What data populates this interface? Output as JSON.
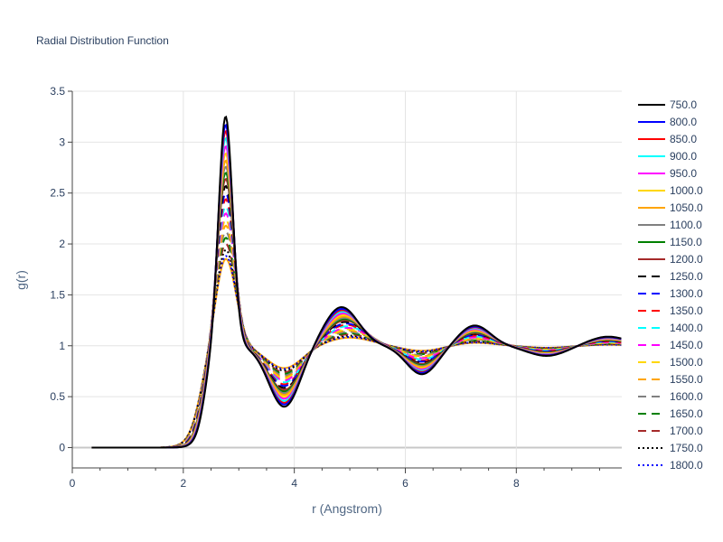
{
  "chart_data": {
    "type": "line",
    "title": "Radial Distribution Function",
    "xlabel": "r (Angstrom)",
    "ylabel": "g(r)",
    "xlim": [
      0,
      9.9
    ],
    "ylim": [
      -0.2,
      3.5
    ],
    "xticks": [
      0,
      2,
      4,
      6,
      8
    ],
    "xtick_labels": [
      "0",
      "2",
      "4",
      "6",
      "8"
    ],
    "yticks": [
      0,
      0.5,
      1,
      1.5,
      2,
      2.5,
      3,
      3.5
    ],
    "ytick_labels": [
      "0",
      "0.5",
      "1",
      "1.5",
      "2",
      "2.5",
      "3",
      "3.5"
    ],
    "grid": true,
    "legend_position": "right",
    "series": [
      {
        "name": "750.0",
        "color": "#000000",
        "dash": "solid",
        "peak1_height": 3.33
      },
      {
        "name": "800.0",
        "color": "#0000ff",
        "dash": "solid",
        "peak1_height": 3.25
      },
      {
        "name": "850.0",
        "color": "#ff0000",
        "dash": "solid",
        "peak1_height": 3.19
      },
      {
        "name": "900.0",
        "color": "#00ffff",
        "dash": "solid",
        "peak1_height": 3.12
      },
      {
        "name": "950.0",
        "color": "#ff00ff",
        "dash": "solid",
        "peak1_height": 3.04
      },
      {
        "name": "1000.0",
        "color": "#ffd700",
        "dash": "solid",
        "peak1_height": 2.97
      },
      {
        "name": "1050.0",
        "color": "#ffa500",
        "dash": "solid",
        "peak1_height": 2.9
      },
      {
        "name": "1100.0",
        "color": "#808080",
        "dash": "solid",
        "peak1_height": 2.84
      },
      {
        "name": "1150.0",
        "color": "#008000",
        "dash": "solid",
        "peak1_height": 2.78
      },
      {
        "name": "1200.0",
        "color": "#a52a2a",
        "dash": "solid",
        "peak1_height": 2.72
      },
      {
        "name": "1250.0",
        "color": "#000000",
        "dash": "dash",
        "peak1_height": 2.65
      },
      {
        "name": "1300.0",
        "color": "#0000ff",
        "dash": "dash",
        "peak1_height": 2.58
      },
      {
        "name": "1350.0",
        "color": "#ff0000",
        "dash": "dash",
        "peak1_height": 2.52
      },
      {
        "name": "1400.0",
        "color": "#00ffff",
        "dash": "dash",
        "peak1_height": 2.45
      },
      {
        "name": "1450.0",
        "color": "#ff00ff",
        "dash": "dash",
        "peak1_height": 2.38
      },
      {
        "name": "1500.0",
        "color": "#ffd700",
        "dash": "dash",
        "peak1_height": 2.32
      },
      {
        "name": "1550.0",
        "color": "#ffa500",
        "dash": "dash",
        "peak1_height": 2.26
      },
      {
        "name": "1600.0",
        "color": "#808080",
        "dash": "dash",
        "peak1_height": 2.2
      },
      {
        "name": "1650.0",
        "color": "#008000",
        "dash": "dash",
        "peak1_height": 2.14
      },
      {
        "name": "1700.0",
        "color": "#a52a2a",
        "dash": "dash",
        "peak1_height": 2.08
      },
      {
        "name": "1750.0",
        "color": "#000000",
        "dash": "dot",
        "peak1_height": 2.02
      },
      {
        "name": "1800.0",
        "color": "#0000ff",
        "dash": "dot",
        "peak1_height": 1.96
      }
    ],
    "extra_series": [
      {
        "color": "#ffa500",
        "dash": "solid",
        "peak1_height": 1.93
      }
    ]
  }
}
